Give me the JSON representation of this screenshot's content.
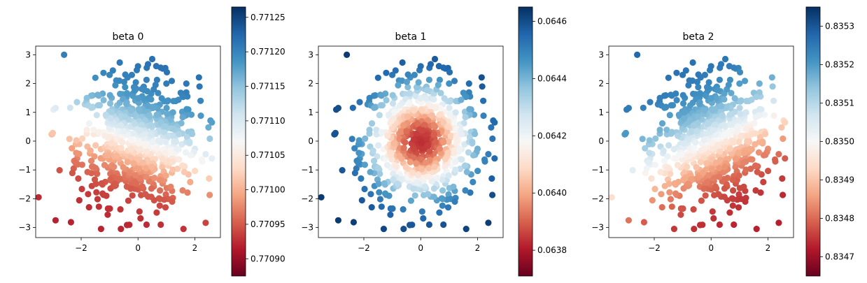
{
  "chart_data": [
    {
      "type": "scatter",
      "title": "beta 0",
      "xlabel": "",
      "ylabel": "",
      "xlim": [
        -3.6,
        2.9
      ],
      "ylim": [
        -3.35,
        3.3
      ],
      "x_ticks": [
        -2,
        0,
        2
      ],
      "y_ticks": [
        -3,
        -2,
        -1,
        0,
        1,
        2,
        3
      ],
      "colormap": "RdBu",
      "colorbar": {
        "min": 0.770875,
        "max": 0.771265,
        "ticks": [
          "0.77090",
          "0.77095",
          "0.77100",
          "0.77105",
          "0.77110",
          "0.77115",
          "0.77120",
          "0.77125"
        ],
        "tick_values": [
          0.7709,
          0.77095,
          0.771,
          0.77105,
          0.7711,
          0.77115,
          0.7712,
          0.77125
        ]
      },
      "pattern": {
        "kind": "linear",
        "dx": 0.3,
        "dy": 1.0,
        "center": 0.77107,
        "spread": 0.000155
      },
      "points": [
        [
          -2.6,
          3.0
        ],
        [
          0.0,
          2.6
        ],
        [
          0.5,
          2.85
        ],
        [
          -1.0,
          2.3
        ],
        [
          1.0,
          2.0
        ],
        [
          -2.9,
          1.15
        ],
        [
          -3.0,
          0.28
        ],
        [
          2.6,
          0.65
        ],
        [
          -2.2,
          -0.75
        ],
        [
          -2.1,
          -1.3
        ],
        [
          -3.5,
          -1.95
        ],
        [
          -2.9,
          -2.75
        ],
        [
          -1.3,
          -3.05
        ],
        [
          -0.6,
          -3.05
        ],
        [
          0.3,
          -2.9
        ],
        [
          0.8,
          -2.9
        ],
        [
          1.6,
          -3.05
        ],
        [
          1.2,
          -2.1
        ],
        [
          2.5,
          -1.3
        ],
        [
          2.6,
          -0.6
        ],
        [
          0.8,
          2.55
        ],
        [
          1.7,
          2.0
        ],
        [
          2.2,
          1.4
        ],
        [
          -1.5,
          2.2
        ],
        [
          -1.8,
          1.5
        ]
      ]
    },
    {
      "type": "scatter",
      "title": "beta 1",
      "xlabel": "",
      "ylabel": "",
      "xlim": [
        -3.6,
        2.9
      ],
      "ylim": [
        -3.35,
        3.3
      ],
      "x_ticks": [
        -2,
        0,
        2
      ],
      "y_ticks": [
        -3,
        -2,
        -1,
        0,
        1,
        2,
        3
      ],
      "colormap": "RdBu",
      "colorbar": {
        "min": 0.06371,
        "max": 0.06465,
        "ticks": [
          "0.0638",
          "0.0640",
          "0.0642",
          "0.0644",
          "0.0646"
        ],
        "tick_values": [
          0.0638,
          0.064,
          0.0642,
          0.0644,
          0.0646
        ]
      },
      "pattern": {
        "kind": "radial",
        "center": 0.06383,
        "scale": 0.000155
      },
      "points": [
        [
          -2.6,
          3.0
        ],
        [
          0.0,
          2.6
        ],
        [
          0.5,
          2.85
        ],
        [
          -1.0,
          2.3
        ],
        [
          1.0,
          2.0
        ],
        [
          -2.9,
          1.15
        ],
        [
          -3.0,
          0.28
        ],
        [
          2.6,
          0.65
        ],
        [
          -2.2,
          -0.75
        ],
        [
          -2.1,
          -1.3
        ],
        [
          -3.5,
          -1.95
        ],
        [
          -2.9,
          -2.75
        ],
        [
          -1.3,
          -3.05
        ],
        [
          -0.6,
          -3.05
        ],
        [
          0.3,
          -2.9
        ],
        [
          0.8,
          -2.9
        ],
        [
          1.6,
          -3.05
        ],
        [
          1.2,
          -2.1
        ],
        [
          2.5,
          -1.3
        ],
        [
          2.6,
          -0.6
        ],
        [
          0.8,
          2.55
        ],
        [
          1.7,
          2.0
        ],
        [
          2.2,
          1.4
        ],
        [
          -1.5,
          2.2
        ],
        [
          -1.8,
          1.5
        ]
      ]
    },
    {
      "type": "scatter",
      "title": "beta 2",
      "xlabel": "",
      "ylabel": "",
      "xlim": [
        -3.6,
        2.9
      ],
      "ylim": [
        -3.35,
        3.3
      ],
      "x_ticks": [
        -2,
        0,
        2
      ],
      "y_ticks": [
        -3,
        -2,
        -1,
        0,
        1,
        2,
        3
      ],
      "colormap": "RdBu",
      "colorbar": {
        "min": 0.83465,
        "max": 0.83535,
        "ticks": [
          "0.8347",
          "0.8348",
          "0.8349",
          "0.8350",
          "0.8351",
          "0.8352",
          "0.8353"
        ],
        "tick_values": [
          0.8347,
          0.8348,
          0.8349,
          0.835,
          0.8351,
          0.8352,
          0.8353
        ]
      },
      "pattern": {
        "kind": "linear",
        "dx": -0.45,
        "dy": 1.0,
        "center": 0.835,
        "spread": 0.00028
      },
      "points": [
        [
          -2.6,
          3.0
        ],
        [
          0.0,
          2.6
        ],
        [
          0.5,
          2.85
        ],
        [
          -1.0,
          2.3
        ],
        [
          1.0,
          2.0
        ],
        [
          -2.9,
          1.15
        ],
        [
          -3.0,
          0.28
        ],
        [
          2.6,
          0.65
        ],
        [
          -2.2,
          -0.75
        ],
        [
          -2.1,
          -1.3
        ],
        [
          -3.5,
          -1.95
        ],
        [
          -2.9,
          -2.75
        ],
        [
          -1.3,
          -3.05
        ],
        [
          -0.6,
          -3.05
        ],
        [
          0.3,
          -2.9
        ],
        [
          0.8,
          -2.9
        ],
        [
          1.6,
          -3.05
        ],
        [
          1.2,
          -2.1
        ],
        [
          2.5,
          -1.3
        ],
        [
          2.6,
          -0.6
        ],
        [
          0.8,
          2.55
        ],
        [
          1.7,
          2.0
        ],
        [
          2.2,
          1.4
        ],
        [
          -1.5,
          2.2
        ],
        [
          -1.8,
          1.5
        ]
      ]
    }
  ]
}
